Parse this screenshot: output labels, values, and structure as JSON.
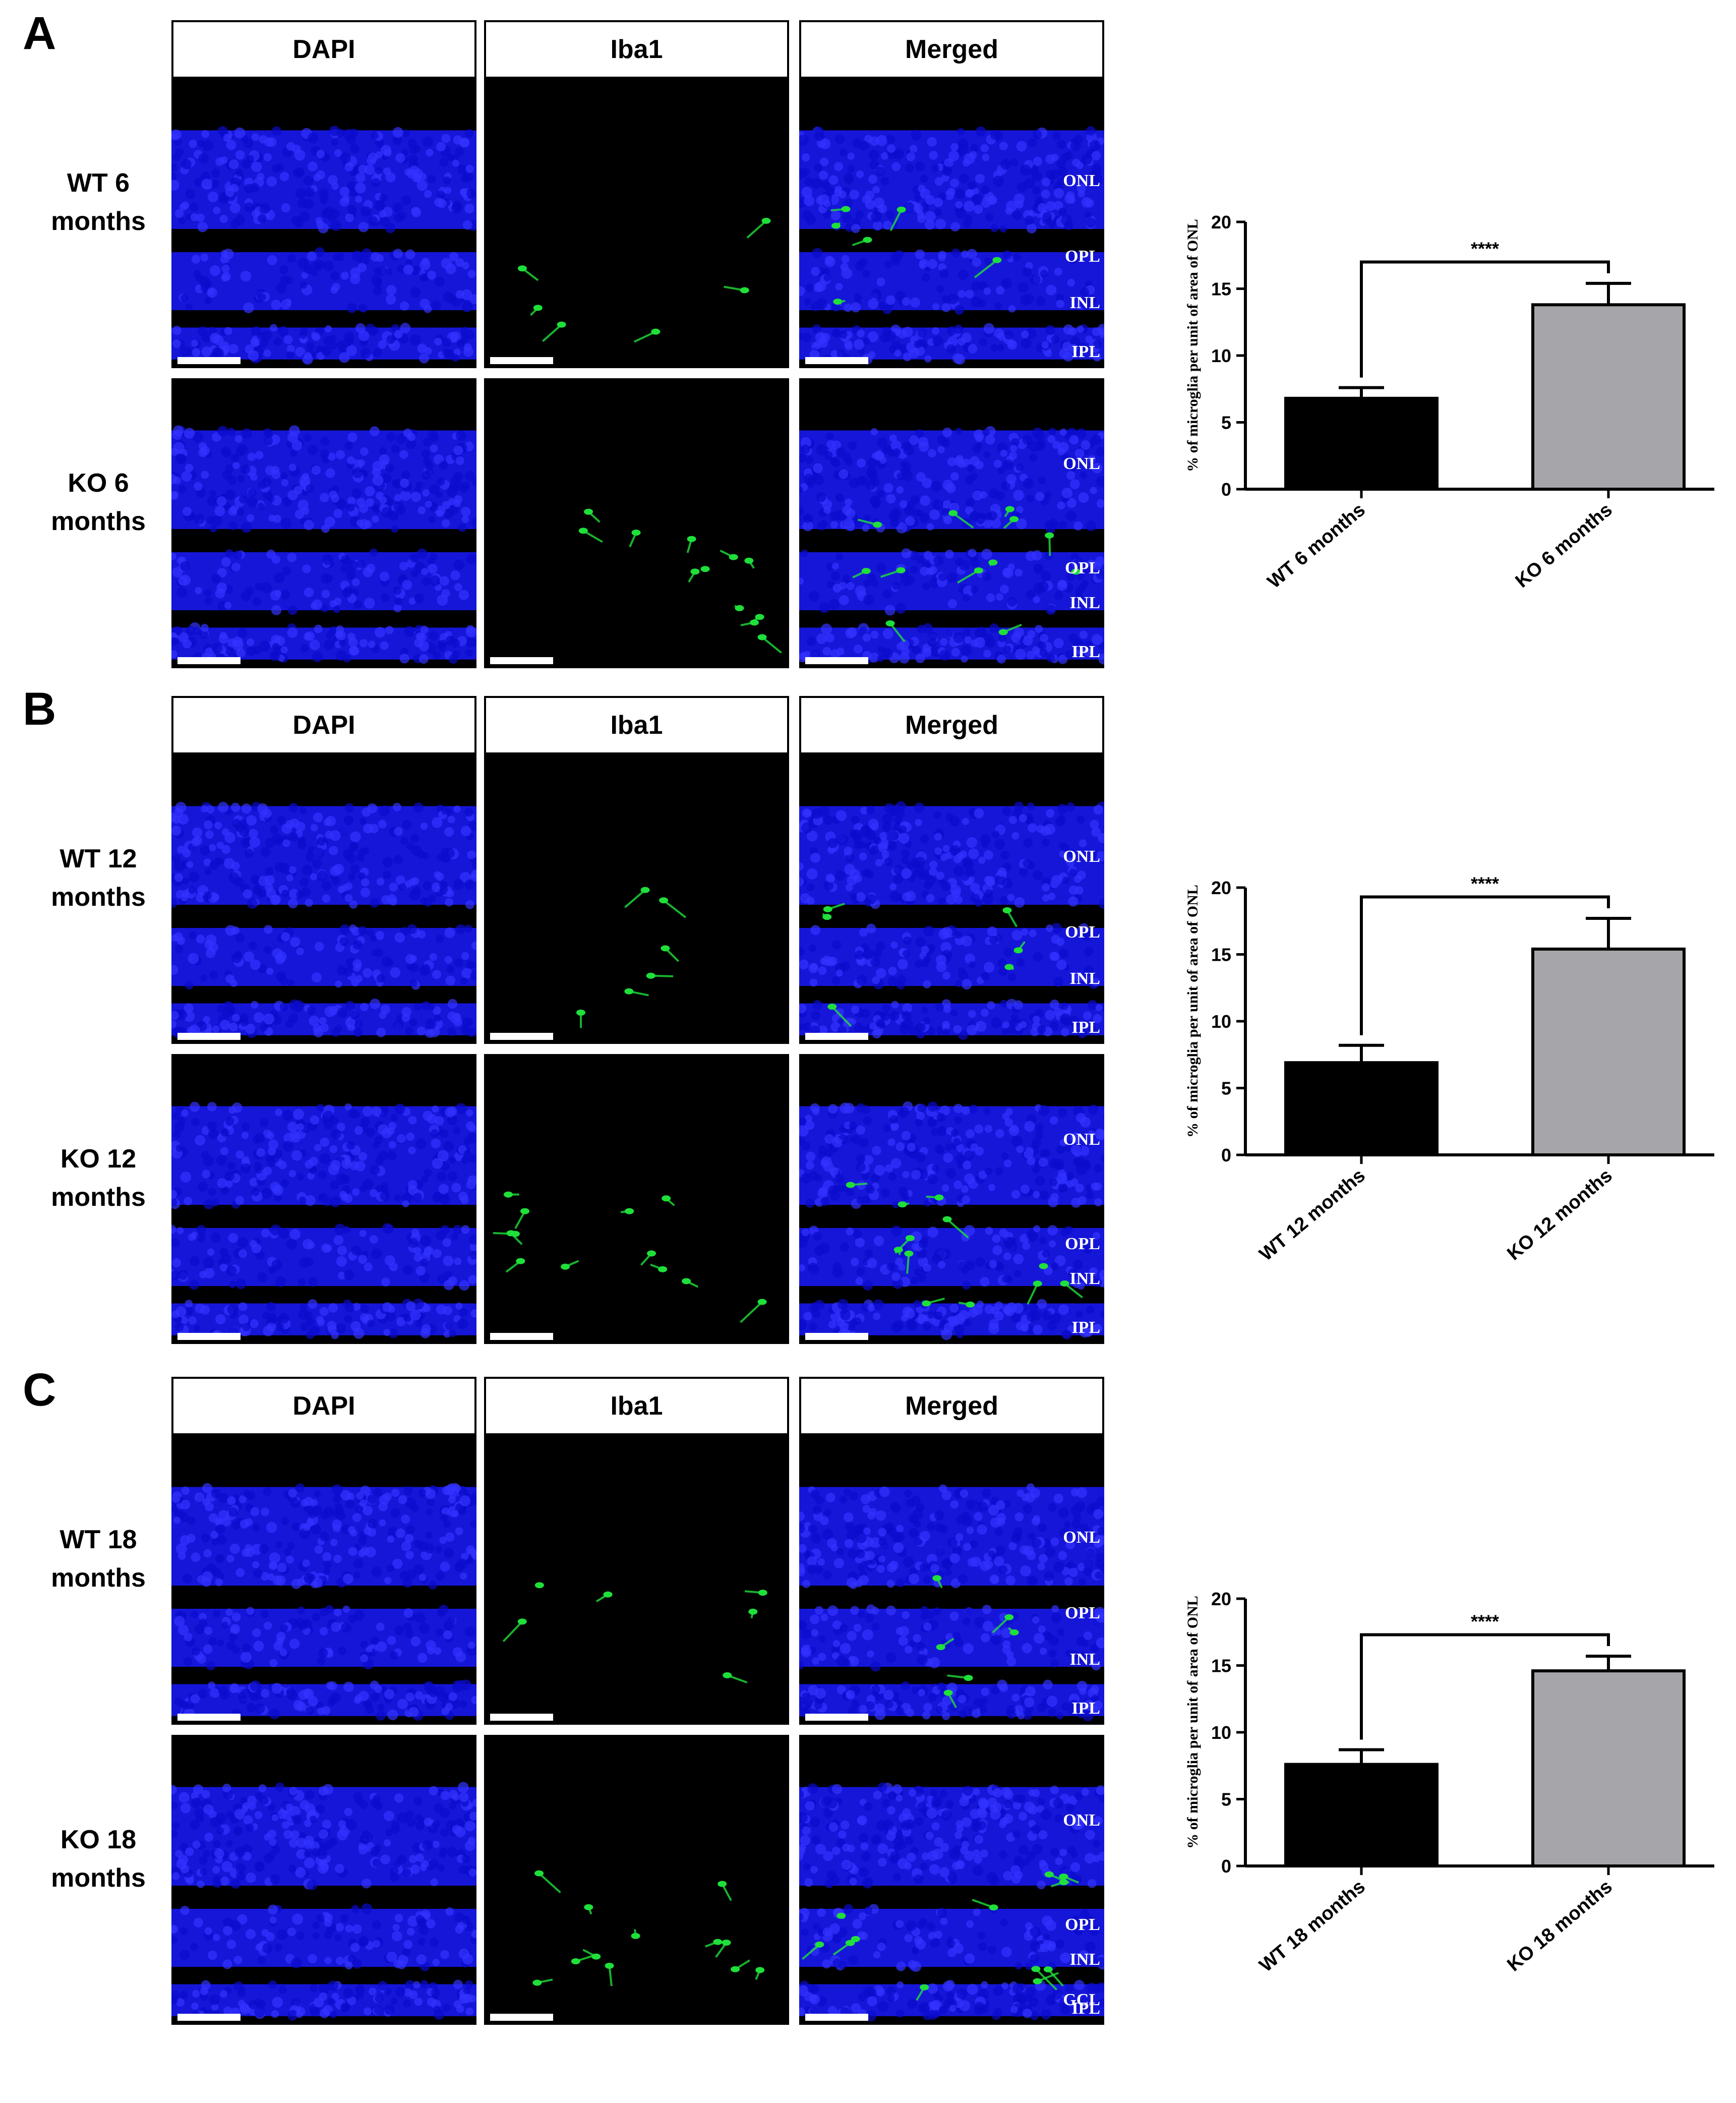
{
  "panels": [
    {
      "letter": "A",
      "headers": [
        "DAPI",
        "Iba1",
        "Merged"
      ],
      "rows": [
        {
          "label_line1": "WT 6",
          "label_line2": "months",
          "layers": [
            "ONL",
            "OPL",
            "INL",
            "IPL"
          ]
        },
        {
          "label_line1": "KO 6",
          "label_line2": "months",
          "layers": [
            "ONL",
            "OPL",
            "INL",
            "IPL"
          ]
        }
      ]
    },
    {
      "letter": "B",
      "headers": [
        "DAPI",
        "Iba1",
        "Merged"
      ],
      "rows": [
        {
          "label_line1": "WT 12",
          "label_line2": "months",
          "layers": [
            "ONL",
            "OPL",
            "INL",
            "IPL"
          ]
        },
        {
          "label_line1": "KO 12",
          "label_line2": "months",
          "layers": [
            "ONL",
            "OPL",
            "INL",
            "IPL"
          ]
        }
      ]
    },
    {
      "letter": "C",
      "headers": [
        "DAPI",
        "Iba1",
        "Merged"
      ],
      "rows": [
        {
          "label_line1": "WT 18",
          "label_line2": "months",
          "layers": [
            "ONL",
            "OPL",
            "INL",
            "IPL"
          ]
        },
        {
          "label_line1": "KO 18",
          "label_line2": "months",
          "layers": [
            "ONL",
            "OPL",
            "INL",
            "IPL",
            "GCL"
          ]
        }
      ]
    }
  ],
  "colors": {
    "wt_bar": "#000000",
    "ko_bar": "#a6a6aa",
    "dapi": "#1a1aff",
    "iba1": "#1fe03a"
  },
  "chart_data": [
    {
      "type": "bar",
      "categories": [
        "WT 6 months",
        "KO 6 months"
      ],
      "values": [
        6.8,
        13.8
      ],
      "errors": [
        0.8,
        1.6
      ],
      "ylabel": "% of microglia per unit of area of ONL",
      "ylim": [
        0,
        20
      ],
      "yticks": [
        0,
        5,
        10,
        15,
        20
      ],
      "significance": "****",
      "colors": [
        "#000000",
        "#a6a6aa"
      ]
    },
    {
      "type": "bar",
      "categories": [
        "WT 12 months",
        "KO 12 months"
      ],
      "values": [
        6.9,
        15.4
      ],
      "errors": [
        1.3,
        2.3
      ],
      "ylabel": "% of microglia per unit of area of ONL",
      "ylim": [
        0,
        20
      ],
      "yticks": [
        0,
        5,
        10,
        15,
        20
      ],
      "significance": "****",
      "colors": [
        "#000000",
        "#a6a6aa"
      ]
    },
    {
      "type": "bar",
      "categories": [
        "WT 18 months",
        "KO 18 months"
      ],
      "values": [
        7.6,
        14.6
      ],
      "errors": [
        1.1,
        1.1
      ],
      "ylabel": "% of microglia per unit of area of ONL",
      "ylim": [
        0,
        20
      ],
      "yticks": [
        0,
        5,
        10,
        15,
        20
      ],
      "significance": "****",
      "colors": [
        "#000000",
        "#a6a6aa"
      ]
    }
  ]
}
